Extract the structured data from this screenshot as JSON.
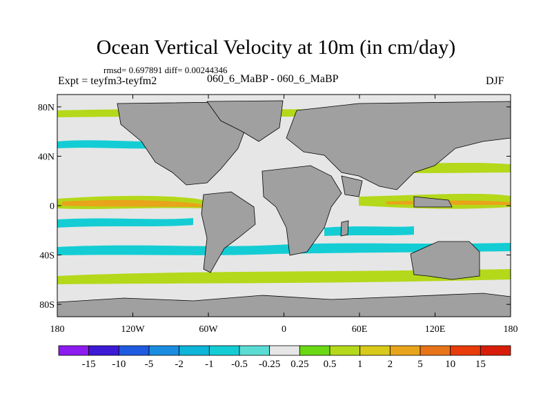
{
  "title": "Ocean Vertical Velocity at 10m (in cm/day)",
  "stats": "rmsd= 0.697891 diff= 0.00244346",
  "experiment": "Expt = teyfm3-teyfm2",
  "subtitle": "060_6_MaBP - 060_6_MaBP",
  "season": "DJF",
  "axes": {
    "lat_ticks": [
      "80N",
      "40N",
      "0",
      "40S",
      "80S"
    ],
    "lon_ticks": [
      "180",
      "120W",
      "60W",
      "0",
      "60E",
      "120E",
      "180"
    ],
    "lat_values": [
      80,
      40,
      0,
      -40,
      -80
    ],
    "lon_values": [
      -180,
      -120,
      -60,
      0,
      60,
      120,
      180
    ]
  },
  "colorbar": {
    "labels": [
      "-15",
      "-10",
      "-5",
      "-2",
      "-1",
      "-0.5",
      "-0.25",
      "0.25",
      "0.5",
      "1",
      "2",
      "5",
      "10",
      "15"
    ],
    "colors": [
      "#8d1bf0",
      "#3c1ad6",
      "#1f5be0",
      "#1a8de0",
      "#0db5d8",
      "#14cdd4",
      "#5adcd4",
      "#e6e6e6",
      "#6ad914",
      "#b4d81a",
      "#d8c91a",
      "#e8a41a",
      "#e8741a",
      "#e83c0a",
      "#d81e0a"
    ]
  },
  "legend_colors": {
    "land": "#a0a0a0",
    "neutral_ocean": "#e6e6e6",
    "upwelling_moderate": "#b4d81a",
    "upwelling_strong": "#e8a41a",
    "downwelling_moderate": "#14cdd4",
    "downwelling_strong": "#1a8de0"
  }
}
